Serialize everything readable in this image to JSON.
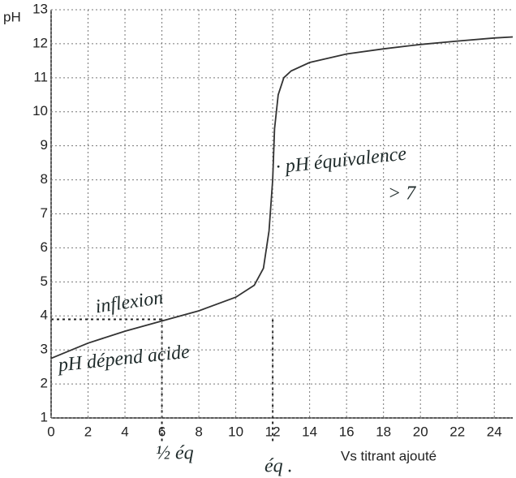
{
  "chart_data": {
    "type": "line",
    "y_label": "pH",
    "x_label": "Vs titrant ajouté",
    "x": [
      0,
      2,
      4,
      6,
      8,
      10,
      11,
      11.5,
      11.8,
      12,
      12.1,
      12.3,
      12.6,
      13,
      14,
      16,
      18,
      20,
      22,
      24,
      25
    ],
    "series": [
      {
        "color": "#333333",
        "values": [
          2.75,
          3.2,
          3.55,
          3.85,
          4.15,
          4.55,
          4.9,
          5.4,
          6.5,
          8,
          9.5,
          10.5,
          11,
          11.2,
          11.45,
          11.7,
          11.85,
          11.98,
          12.08,
          12.17,
          12.2
        ]
      }
    ],
    "xlim": [
      0,
      25
    ],
    "ylim": [
      1,
      13
    ],
    "xticks": [
      0,
      2,
      4,
      6,
      8,
      10,
      12,
      14,
      16,
      18,
      20,
      22,
      24
    ],
    "yticks": [
      1,
      2,
      3,
      4,
      5,
      6,
      7,
      8,
      9,
      10,
      11,
      12,
      13
    ],
    "grid": true,
    "reference_lines": {
      "x": [
        6,
        12
      ],
      "y": [
        3.9
      ]
    },
    "annotations": [
      "· pH équivalence",
      "> 7",
      "inflexion",
      "pH dépend acide",
      "½ éq",
      "éq ."
    ]
  }
}
